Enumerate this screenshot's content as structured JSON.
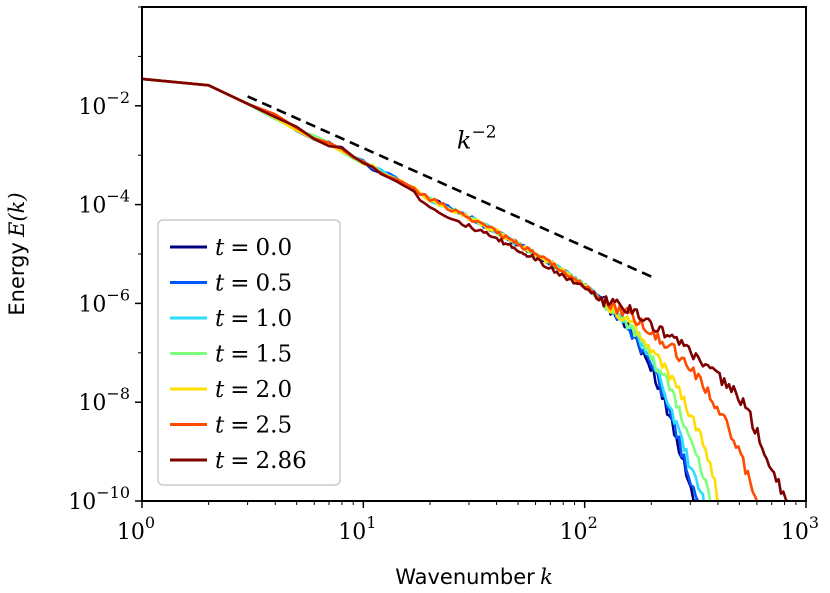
{
  "chart_data": {
    "type": "line",
    "xscale": "log",
    "yscale": "log",
    "xlim": [
      1,
      1000
    ],
    "ylim": [
      1e-10,
      1
    ],
    "xlabel_text": "Wavenumber",
    "xlabel_var": "k",
    "ylabel_text": "Energy",
    "ylabel_var": "E(k)",
    "x_ticks": [
      {
        "value": 1,
        "base": "10",
        "exp": "0"
      },
      {
        "value": 10,
        "base": "10",
        "exp": "1"
      },
      {
        "value": 100,
        "base": "10",
        "exp": "2"
      },
      {
        "value": 1000,
        "base": "10",
        "exp": "3"
      }
    ],
    "y_ticks": [
      {
        "value": 1e-10,
        "base": "10",
        "exp": "−10"
      },
      {
        "value": 1e-08,
        "base": "10",
        "exp": "−8"
      },
      {
        "value": 1e-06,
        "base": "10",
        "exp": "−6"
      },
      {
        "value": 0.0001,
        "base": "10",
        "exp": "−4"
      },
      {
        "value": 0.01,
        "base": "10",
        "exp": "−2"
      }
    ],
    "reference_line": {
      "label_var": "k",
      "label_exp": "−2",
      "slope": -2,
      "x_start": 3,
      "x_end": 200,
      "y_start": 0.0155,
      "label_x": 30,
      "label_y": 0.002,
      "style": "dashed",
      "color": "#000000"
    },
    "legend": {
      "position": "center-left"
    },
    "series": [
      {
        "name": "t = 0.0",
        "label_var": "t",
        "label_eq": "=",
        "label_val": "0.0",
        "color": "#00007f",
        "tail_end_k": 318
      },
      {
        "name": "t = 0.5",
        "label_var": "t",
        "label_eq": "=",
        "label_val": "0.5",
        "color": "#0055ff",
        "tail_end_k": 325
      },
      {
        "name": "t = 1.0",
        "label_var": "t",
        "label_eq": "=",
        "label_val": "1.0",
        "color": "#29ddff",
        "tail_end_k": 345
      },
      {
        "name": "t = 1.5",
        "label_var": "t",
        "label_eq": "=",
        "label_val": "1.5",
        "color": "#7dff7a",
        "tail_end_k": 370
      },
      {
        "name": "t = 2.0",
        "label_var": "t",
        "label_eq": "=",
        "label_val": "2.0",
        "color": "#ffdd00",
        "tail_end_k": 405
      },
      {
        "name": "t = 2.5",
        "label_var": "t",
        "label_eq": "=",
        "label_val": "2.5",
        "color": "#ff4a00",
        "tail_end_k": 600
      },
      {
        "name": "t = 2.86",
        "label_var": "t",
        "label_eq": "=",
        "label_val": "2.86",
        "color": "#7f0000",
        "tail_end_k": 820
      }
    ],
    "spectra": {
      "common_k": [
        1,
        2,
        3,
        4,
        5,
        6,
        8,
        10,
        15,
        20,
        30,
        40,
        50,
        60,
        70,
        80,
        100,
        120
      ],
      "common_E": [
        0.035,
        0.026,
        0.011,
        0.006,
        0.0034,
        0.0023,
        0.0013,
        0.0007,
        0.00028,
        0.00013,
        5.5e-05,
        2.8e-05,
        1.6e-05,
        1e-05,
        6.5e-06,
        4.5e-06,
        2.3e-06,
        1.15e-06
      ],
      "late_deviation": {
        "applies_to": [
          "t = 2.86"
        ],
        "k": [
          20,
          30,
          40,
          50,
          60,
          80,
          100,
          120
        ],
        "E": [
          9e-05,
          3.6e-05,
          2e-05,
          1.2e-05,
          8e-06,
          3.6e-06,
          2.1e-06,
          1.15e-06
        ]
      },
      "tails": [
        {
          "name": "t = 0.0",
          "k": [
            120,
            150,
            180,
            210,
            240,
            270,
            300,
            318
          ],
          "E": [
            1.15e-06,
            4e-07,
            1.2e-07,
            3e-08,
            6e-09,
            1e-09,
            2e-10,
            1e-10
          ]
        },
        {
          "name": "t = 0.5",
          "k": [
            120,
            150,
            180,
            210,
            240,
            270,
            300,
            325
          ],
          "E": [
            1.15e-06,
            4.2e-07,
            1.3e-07,
            3.5e-08,
            7.5e-09,
            1.3e-09,
            2.5e-10,
            1e-10
          ]
        },
        {
          "name": "t = 1.0",
          "k": [
            120,
            150,
            180,
            210,
            240,
            270,
            300,
            345
          ],
          "E": [
            1.15e-06,
            4.5e-07,
            1.5e-07,
            4.5e-08,
            1e-08,
            2e-09,
            5e-10,
            1e-10
          ]
        },
        {
          "name": "t = 1.5",
          "k": [
            120,
            150,
            180,
            210,
            250,
            290,
            330,
            370
          ],
          "E": [
            1.15e-06,
            5e-07,
            1.8e-07,
            6e-08,
            1.5e-08,
            3e-09,
            6e-10,
            1e-10
          ]
        },
        {
          "name": "t = 2.0",
          "k": [
            120,
            150,
            180,
            210,
            250,
            300,
            350,
            405
          ],
          "E": [
            1.2e-06,
            5.5e-07,
            2.3e-07,
            9e-08,
            2.8e-08,
            6e-09,
            1.2e-09,
            1e-10
          ]
        },
        {
          "name": "t = 2.5",
          "k": [
            120,
            150,
            200,
            250,
            300,
            350,
            400,
            450,
            500,
            550,
            600
          ],
          "E": [
            1.3e-06,
            7e-07,
            2.8e-07,
            1.2e-07,
            5e-08,
            2e-08,
            8e-09,
            3e-09,
            1e-09,
            3e-10,
            1e-10
          ]
        },
        {
          "name": "t = 2.86",
          "k": [
            120,
            150,
            200,
            250,
            300,
            350,
            400,
            450,
            500,
            550,
            600,
            650,
            700,
            750,
            800,
            820
          ],
          "E": [
            1.3e-06,
            9e-07,
            4e-07,
            2e-07,
            1.1e-07,
            6e-08,
            3.5e-08,
            2e-08,
            1.2e-08,
            6e-09,
            2.5e-09,
            1e-09,
            5e-10,
            2.5e-10,
            1.2e-10,
            1e-10
          ]
        }
      ]
    }
  }
}
